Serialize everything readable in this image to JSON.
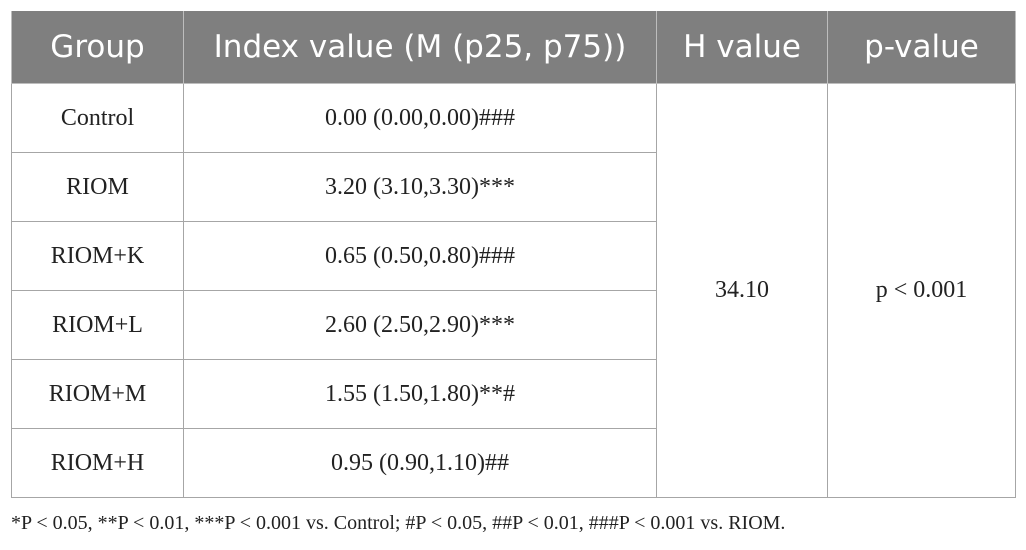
{
  "table": {
    "headers": [
      "Group",
      "Index value (M (p25, p75))",
      "H value",
      "p-value"
    ],
    "rows": [
      [
        "Control",
        "0.00 (0.00,0.00)###"
      ],
      [
        "RIOM",
        "3.20 (3.10,3.30)***"
      ],
      [
        "RIOM+K",
        "0.65 (0.50,0.80)###"
      ],
      [
        "RIOM+L",
        "2.60 (2.50,2.90)***"
      ],
      [
        "RIOM+M",
        "1.55 (1.50,1.80)**#"
      ],
      [
        "RIOM+H",
        "0.95 (0.90,1.10)##"
      ]
    ],
    "h_value": "34.10",
    "p_value": "p < 0.001"
  },
  "footnote": "*P < 0.05, **P < 0.01, ***P < 0.001 vs. Control; #P < 0.05, ##P < 0.01, ###P < 0.001 vs. RIOM."
}
